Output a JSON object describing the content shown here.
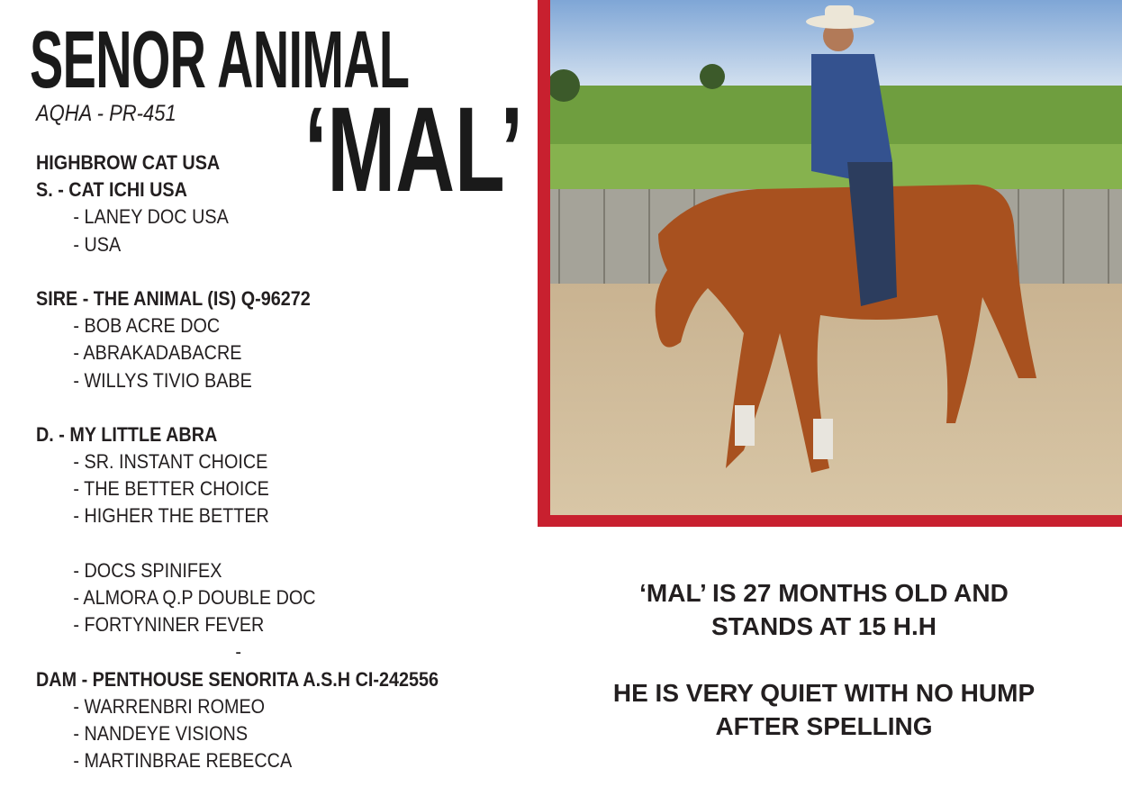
{
  "title": "SENOR ANIMAL",
  "nickname": "‘MAL’",
  "registration": "AQHA - PR-451",
  "pedigree": [
    {
      "text": "HIGHBROW CAT USA",
      "style": "bold"
    },
    {
      "text": "S. - CAT ICHI USA",
      "style": "bold"
    },
    {
      "text": "-  LANEY DOC USA",
      "style": "sub"
    },
    {
      "text": "-  USA",
      "style": "sub"
    },
    {
      "text": "",
      "style": "blank"
    },
    {
      "text": "SIRE - THE ANIMAL (IS) Q-96272",
      "style": "bold"
    },
    {
      "text": "-  BOB ACRE DOC",
      "style": "sub"
    },
    {
      "text": "-  ABRAKADABACRE",
      "style": "sub"
    },
    {
      "text": "-  WILLYS TIVIO BABE",
      "style": "sub"
    },
    {
      "text": "",
      "style": "blank"
    },
    {
      "text": "D. - MY LITTLE ABRA",
      "style": "bold"
    },
    {
      "text": "-  SR. INSTANT CHOICE",
      "style": "sub"
    },
    {
      "text": "-  THE BETTER CHOICE",
      "style": "sub"
    },
    {
      "text": "-  HIGHER THE BETTER",
      "style": "sub"
    },
    {
      "text": "",
      "style": "blank"
    },
    {
      "text": "-  DOCS SPINIFEX",
      "style": "sub"
    },
    {
      "text": "-  ALMORA Q.P DOUBLE DOC",
      "style": "sub"
    },
    {
      "text": "-  FORTYNINER FEVER",
      "style": "sub"
    },
    {
      "text": "-",
      "style": "dash"
    },
    {
      "text": "DAM - PENTHOUSE SENORITA A.S.H CI-242556",
      "style": "bold"
    },
    {
      "text": "-  WARRENBRI ROMEO",
      "style": "sub"
    },
    {
      "text": "-  NANDEYE VISIONS",
      "style": "sub"
    },
    {
      "text": "-  MARTINBRAE REBECCA",
      "style": "sub"
    }
  ],
  "info": {
    "line1": "‘MAL’ IS 27 MONTHS OLD AND",
    "line2": "STANDS AT 15 H.H",
    "line3": "HE IS VERY QUIET WITH NO HUMP",
    "line4": "AFTER SPELLING"
  },
  "colors": {
    "frame": "#c8202f",
    "text": "#231f20"
  }
}
